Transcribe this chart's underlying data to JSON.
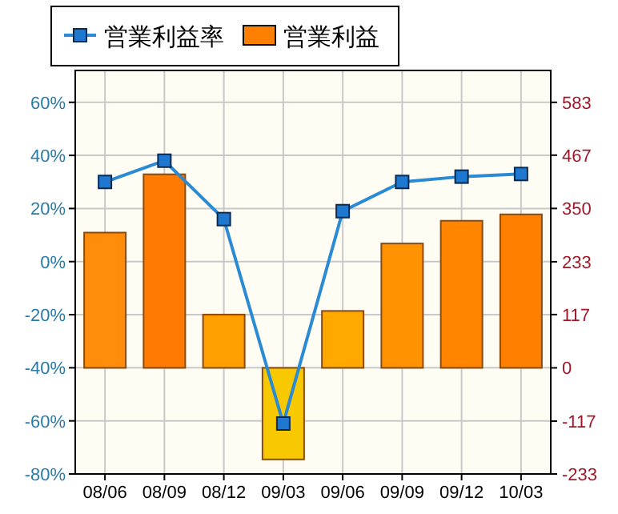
{
  "chart_data": {
    "type": "bar",
    "categories": [
      "08/06",
      "08/09",
      "08/12",
      "09/03",
      "09/06",
      "09/09",
      "09/12",
      "10/03"
    ],
    "series": [
      {
        "name": "営業利益率",
        "type": "line",
        "color": "#2a8ad4",
        "marker": "square",
        "values": [
          30,
          38,
          16,
          -61,
          19,
          30,
          32,
          33
        ]
      },
      {
        "name": "営業利益",
        "axis": "y2",
        "color": "#ff8000",
        "colors": [
          "#ff8c0a",
          "#ff7a00",
          "#ffa000",
          "#f8c800",
          "#ffa800",
          "#ff9200",
          "#ff8400",
          "#ff8000"
        ],
        "values": [
          297,
          425,
          117,
          -201,
          125,
          273,
          323,
          337
        ]
      }
    ],
    "ylim": [
      -80,
      72
    ],
    "yticks": [
      {
        "value": 60,
        "label": "60%"
      },
      {
        "value": 40,
        "label": "40%"
      },
      {
        "value": 20,
        "label": "20%"
      },
      {
        "value": 0,
        "label": "0%"
      },
      {
        "value": -20,
        "label": "-20%"
      },
      {
        "value": -40,
        "label": "-40%"
      },
      {
        "value": -60,
        "label": "-60%"
      },
      {
        "value": -80,
        "label": "-80%"
      }
    ],
    "y2lim": [
      -233,
      653
    ],
    "y2ticks": [
      583,
      467,
      350,
      233,
      117,
      0,
      -117,
      -233
    ],
    "grid": true,
    "legend": "top"
  }
}
